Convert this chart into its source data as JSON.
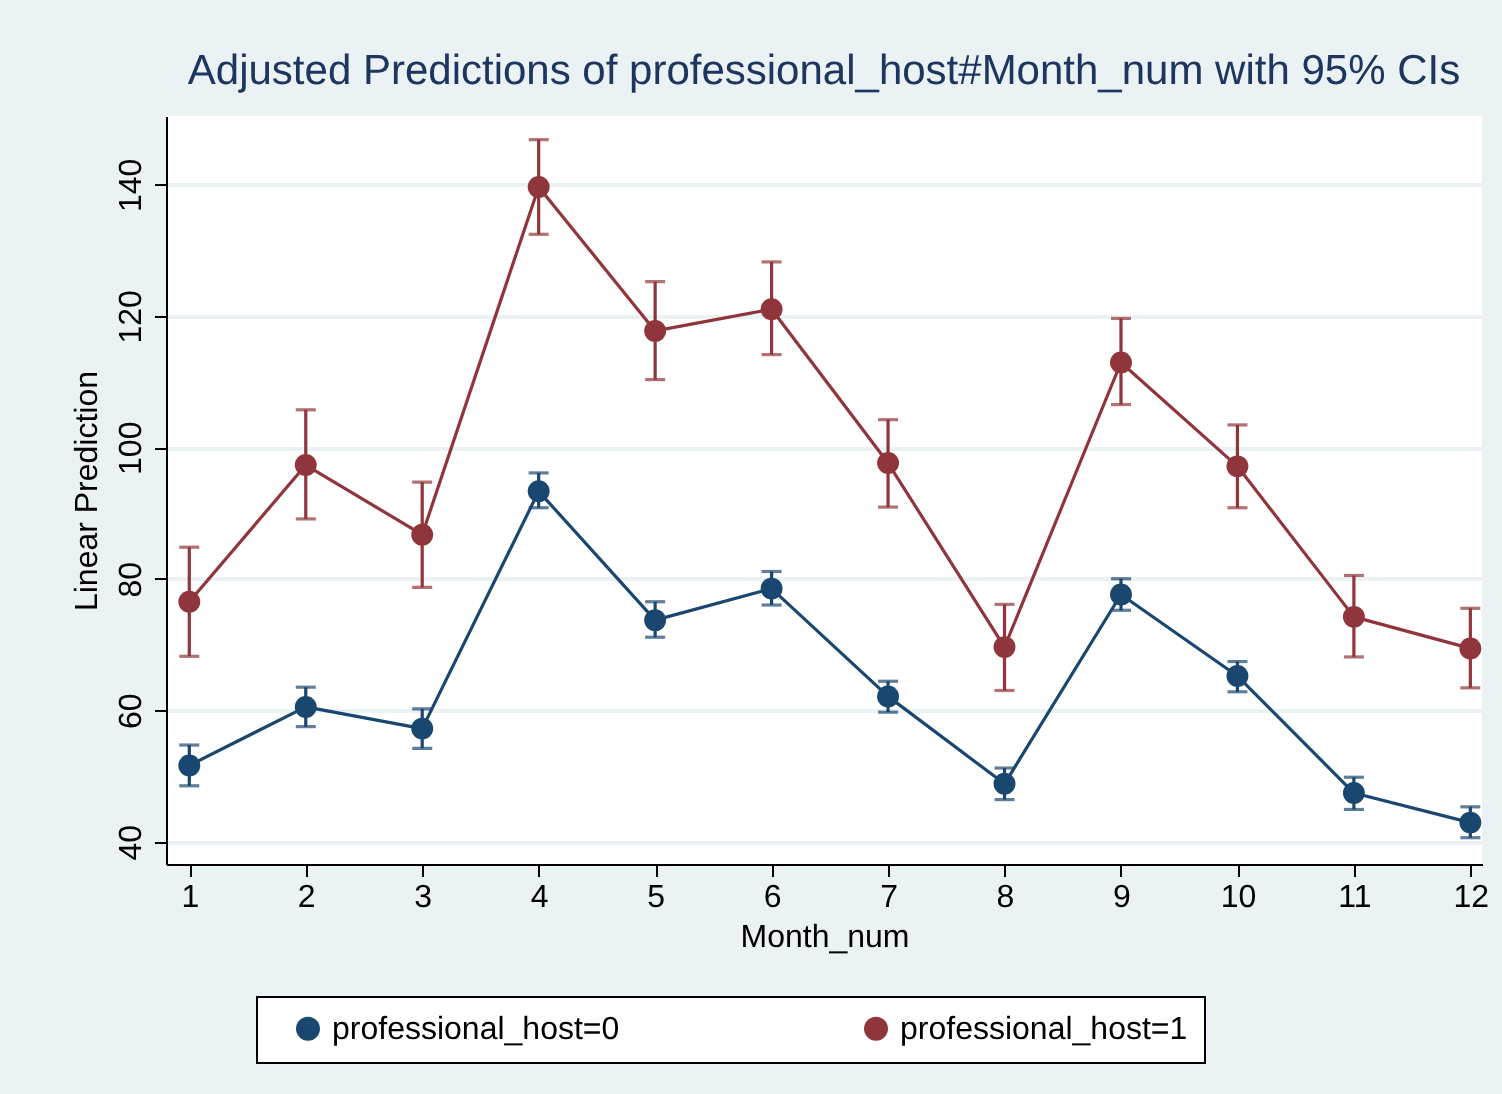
{
  "chart_data": {
    "type": "line",
    "title": "Adjusted Predictions of professional_host#Month_num with 95% CIs",
    "xlabel": "Month_num",
    "ylabel": "Linear Prediction",
    "x": [
      1,
      2,
      3,
      4,
      5,
      6,
      7,
      8,
      9,
      10,
      11,
      12
    ],
    "xlim": [
      0.8,
      12.1
    ],
    "xticks": [
      1,
      2,
      3,
      4,
      5,
      6,
      7,
      8,
      9,
      10,
      11,
      12
    ],
    "ylim": [
      36.6,
      150.4
    ],
    "yticks": [
      40,
      60,
      80,
      100,
      120,
      140
    ],
    "grid": "y",
    "legend": "bottom",
    "marker": "circle",
    "line_style": "solid",
    "series": [
      {
        "name": "professional_host=0",
        "color": "#1a476f",
        "values": [
          51.6,
          60.5,
          57.2,
          93.3,
          73.7,
          78.5,
          62.1,
          48.8,
          77.6,
          65.2,
          47.4,
          42.9
        ],
        "errors": [
          [
            48.5,
            54.7
          ],
          [
            57.5,
            63.5
          ],
          [
            54.2,
            60.2
          ],
          [
            90.8,
            96.1
          ],
          [
            71.1,
            76.5
          ],
          [
            76.0,
            81.1
          ],
          [
            59.7,
            64.4
          ],
          [
            46.4,
            51.2
          ],
          [
            75.2,
            80.0
          ],
          [
            62.8,
            67.4
          ],
          [
            44.9,
            49.8
          ],
          [
            40.6,
            45.3
          ]
        ]
      },
      {
        "name": "professional_host=1",
        "color": "#90353b",
        "values": [
          76.5,
          97.3,
          86.7,
          139.6,
          117.7,
          121.0,
          97.6,
          69.6,
          112.9,
          97.1,
          74.2,
          69.4
        ],
        "errors": [
          [
            68.2,
            84.8
          ],
          [
            89.1,
            105.7
          ],
          [
            78.7,
            94.7
          ],
          [
            132.4,
            146.8
          ],
          [
            110.3,
            125.2
          ],
          [
            114.1,
            128.2
          ],
          [
            90.9,
            104.2
          ],
          [
            63.0,
            76.1
          ],
          [
            106.5,
            119.6
          ],
          [
            90.8,
            103.4
          ],
          [
            68.1,
            80.5
          ],
          [
            63.4,
            75.5
          ]
        ]
      }
    ]
  }
}
